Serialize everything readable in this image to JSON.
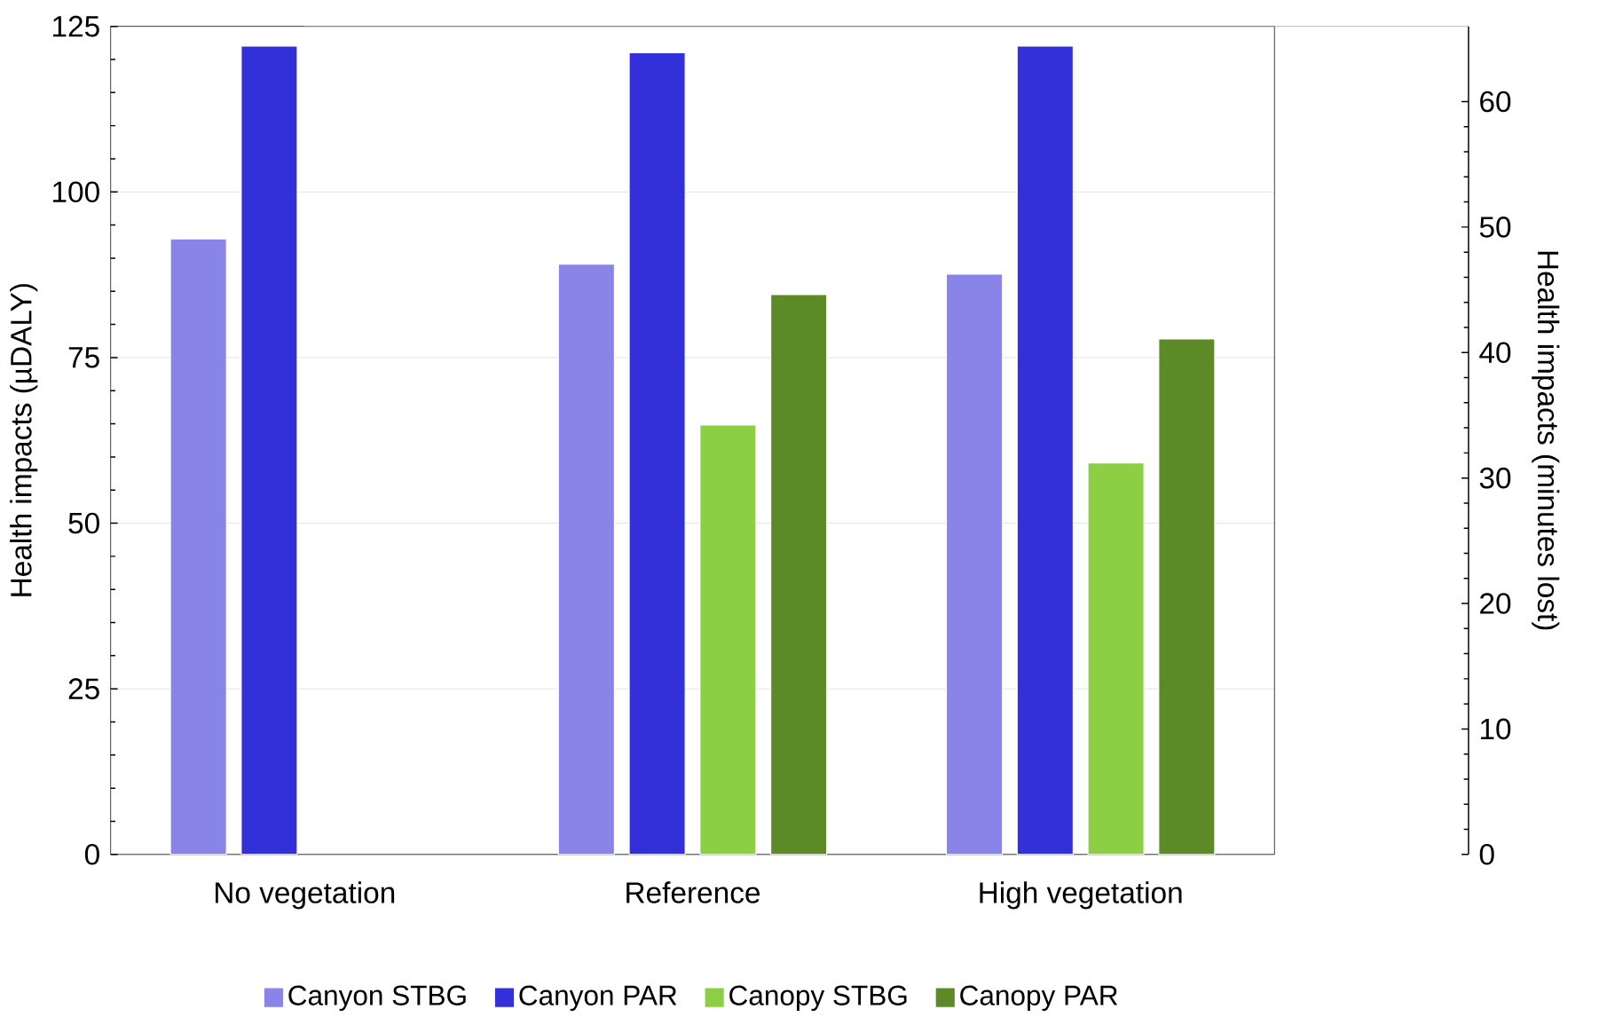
{
  "chart_data": {
    "type": "bar",
    "ylabel": "Health impacts (µDALY)",
    "y2label": "Health impacts (minutes lost)",
    "categories": [
      "No vegetation",
      "Reference",
      "High vegetation"
    ],
    "series": [
      {
        "name": "Canyon STBG",
        "color": "#8884e8",
        "values": [
          92.9,
          89.1,
          87.6
        ]
      },
      {
        "name": "Canyon PAR",
        "color": "#3330d9",
        "values": [
          122,
          121,
          122
        ]
      },
      {
        "name": "Canopy STBG",
        "color": "#8ccf44",
        "values": [
          null,
          64.8,
          59.1
        ]
      },
      {
        "name": "Canopy PAR",
        "color": "#5c8a26",
        "values": [
          null,
          84.5,
          77.8
        ]
      }
    ],
    "ylim": [
      0,
      125
    ],
    "yticks": [
      0,
      25,
      50,
      75,
      100,
      125
    ],
    "y2lim": [
      0,
      66
    ],
    "y2ticks": [
      0,
      10,
      20,
      30,
      40,
      50,
      60
    ],
    "grid": "y",
    "legend": "bottom"
  }
}
